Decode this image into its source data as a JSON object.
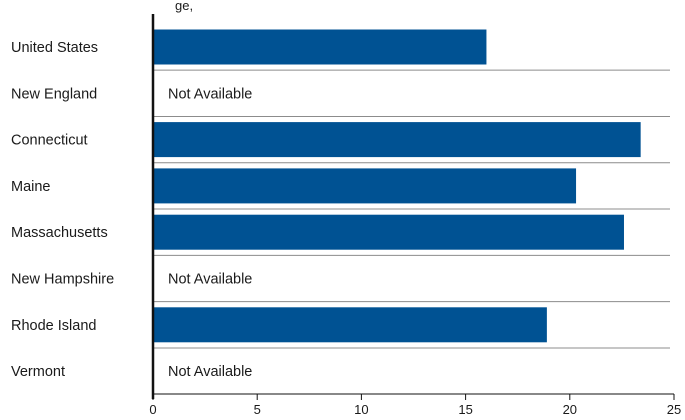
{
  "partial_heading": "ge, ",
  "chart_data": {
    "type": "bar",
    "orientation": "horizontal",
    "categories": [
      "United States",
      "New England",
      "Connecticut",
      "Maine",
      "Massachusetts",
      "New Hampshire",
      "Rhode Island",
      "Vermont"
    ],
    "values": [
      16.0,
      null,
      23.4,
      20.3,
      22.6,
      null,
      18.9,
      null
    ],
    "missing_label": "Not Available",
    "xlim": [
      0,
      25
    ],
    "x_ticks": [
      "0",
      "5",
      "10",
      "15",
      "20",
      "25"
    ],
    "grid": "row separators",
    "colors": {
      "bar": "#005293",
      "axis": "#111111",
      "separator": "#8c8c8c"
    }
  }
}
